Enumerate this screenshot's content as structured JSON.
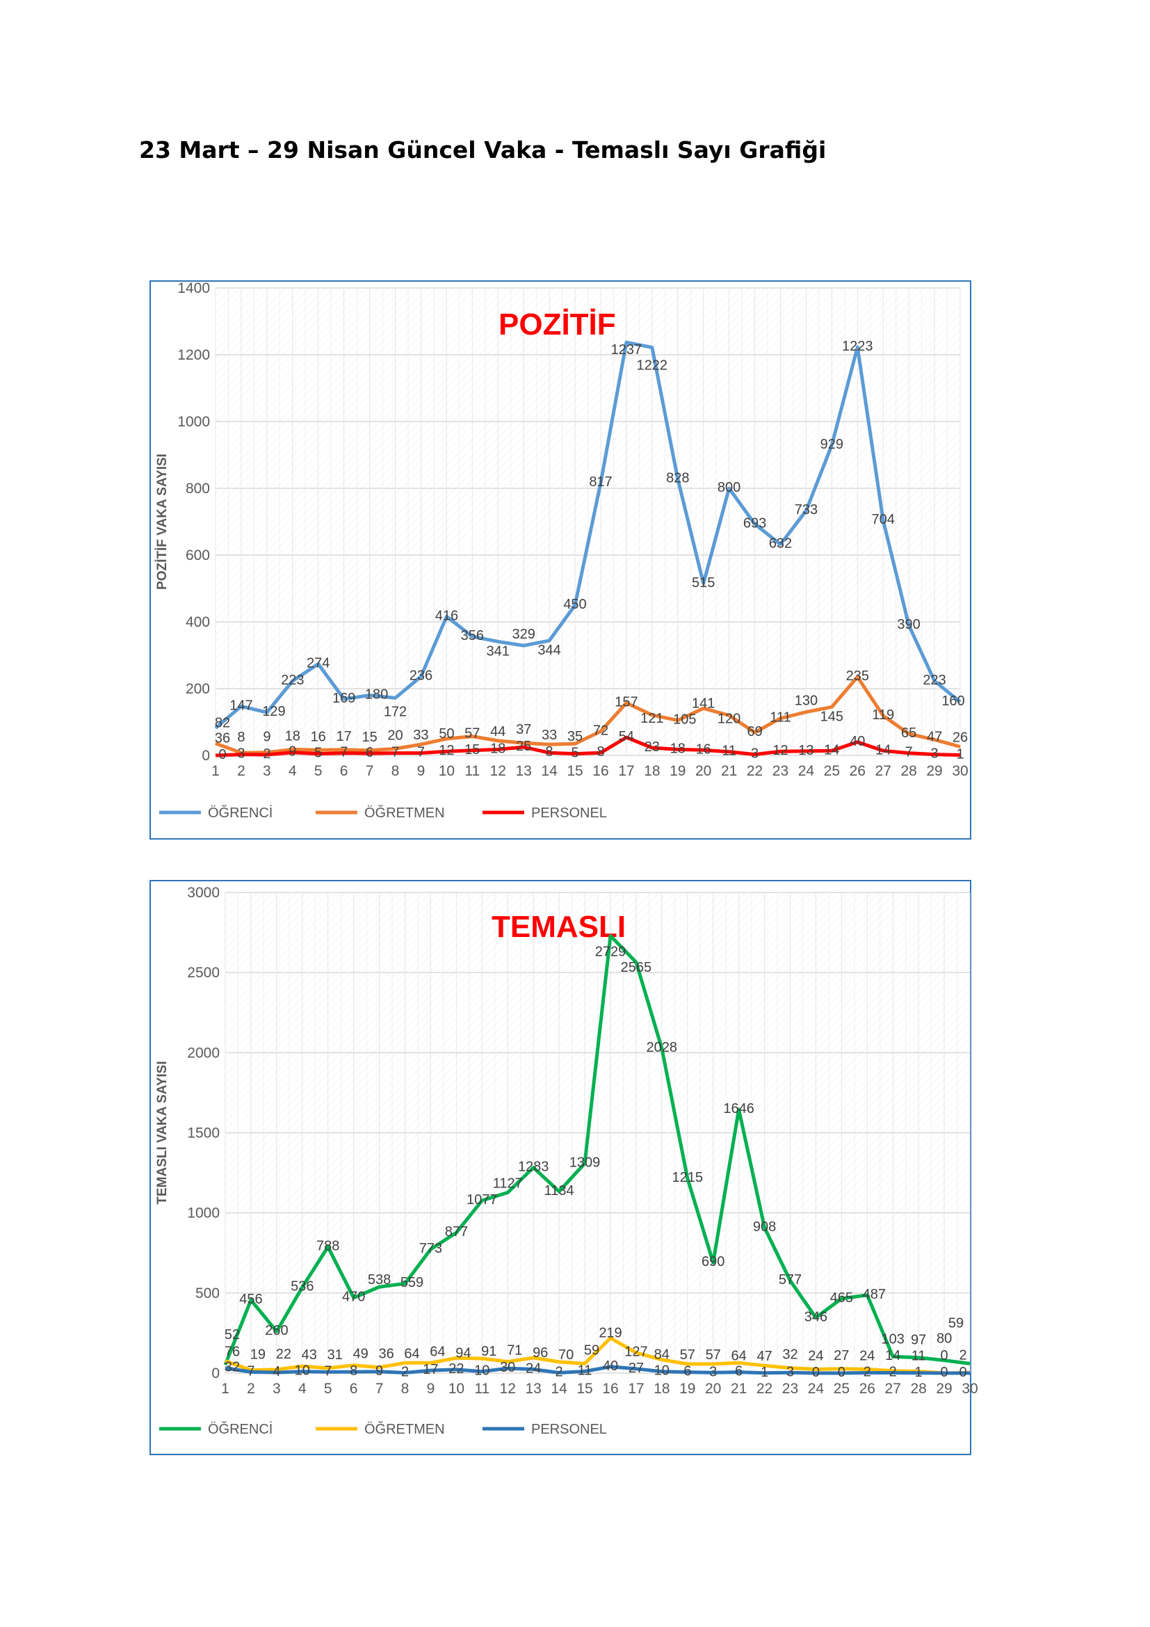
{
  "page_title": "23 Mart – 29 Nisan Güncel Vaka - Temaslı Sayı Grafiği",
  "chart_data": [
    {
      "type": "line",
      "title": "POZİTİF",
      "ylabel": "POZİTİF VAKA SAYISI",
      "xlabel": "",
      "ylim": [
        0,
        1400
      ],
      "yticks": [
        "0",
        "200",
        "400",
        "600",
        "800",
        "1000",
        "1200",
        "1400"
      ],
      "grid": true,
      "legend": "bottom-left",
      "x": [
        "1",
        "2",
        "3",
        "4",
        "5",
        "6",
        "7",
        "8",
        "9",
        "10",
        "11",
        "12",
        "13",
        "14",
        "15",
        "16",
        "17",
        "18",
        "19",
        "20",
        "21",
        "22",
        "23",
        "24",
        "25",
        "26",
        "27",
        "28",
        "29",
        "30"
      ],
      "series": [
        {
          "name": "ÖĞRENCİ",
          "color": "#5B9BD5",
          "values": [
            82,
            147,
            129,
            223,
            274,
            169,
            180,
            172,
            236,
            416,
            356,
            341,
            329,
            344,
            450,
            817,
            1237,
            1222,
            828,
            515,
            800,
            693,
            632,
            733,
            929,
            1223,
            704,
            390,
            223,
            160
          ]
        },
        {
          "name": "ÖĞRETMEN",
          "color": "#ED7D31",
          "values": [
            36,
            8,
            9,
            18,
            16,
            17,
            15,
            20,
            33,
            50,
            57,
            44,
            37,
            33,
            35,
            72,
            157,
            121,
            105,
            141,
            120,
            69,
            111,
            130,
            145,
            235,
            119,
            65,
            47,
            26
          ]
        },
        {
          "name": "PERSONEL",
          "color": "#FF0000",
          "values": [
            0,
            3,
            2,
            9,
            5,
            7,
            6,
            7,
            7,
            12,
            15,
            18,
            25,
            8,
            5,
            8,
            54,
            23,
            18,
            16,
            11,
            3,
            12,
            13,
            14,
            40,
            14,
            7,
            3,
            1
          ]
        }
      ]
    },
    {
      "type": "line",
      "title": "TEMASLI",
      "ylabel": "TEMASLI VAKA SAYISI",
      "xlabel": "",
      "ylim": [
        0,
        3000
      ],
      "yticks": [
        "0",
        "500",
        "1000",
        "1500",
        "2000",
        "2500",
        "3000"
      ],
      "grid": true,
      "legend": "bottom-left",
      "x": [
        "1",
        "2",
        "3",
        "4",
        "5",
        "6",
        "7",
        "8",
        "9",
        "10",
        "11",
        "12",
        "13",
        "14",
        "15",
        "16",
        "17",
        "18",
        "19",
        "20",
        "21",
        "22",
        "23",
        "24",
        "25",
        "26",
        "27",
        "28",
        "29",
        "30"
      ],
      "series": [
        {
          "name": "ÖĞRENCİ",
          "color": "#00B050",
          "values": [
            52,
            456,
            260,
            536,
            788,
            470,
            538,
            559,
            773,
            877,
            1077,
            1127,
            1283,
            1134,
            1309,
            2729,
            2565,
            2028,
            1215,
            690,
            1646,
            908,
            577,
            346,
            465,
            487,
            103,
            97,
            80,
            59
          ]
        },
        {
          "name": "ÖĞRETMEN",
          "color": "#FFC000",
          "values": [
            76,
            19,
            22,
            43,
            31,
            49,
            36,
            64,
            64,
            94,
            91,
            71,
            96,
            70,
            59,
            219,
            127,
            84,
            57,
            57,
            64,
            47,
            32,
            24,
            27,
            24,
            14,
            11,
            0,
            2
          ]
        },
        {
          "name": "PERSONEL",
          "color": "#2E75B6",
          "values": [
            32,
            7,
            4,
            10,
            7,
            8,
            9,
            2,
            17,
            22,
            10,
            30,
            24,
            2,
            11,
            40,
            27,
            10,
            6,
            3,
            6,
            1,
            3,
            0,
            0,
            2,
            2,
            1,
            0,
            0
          ]
        }
      ]
    }
  ]
}
